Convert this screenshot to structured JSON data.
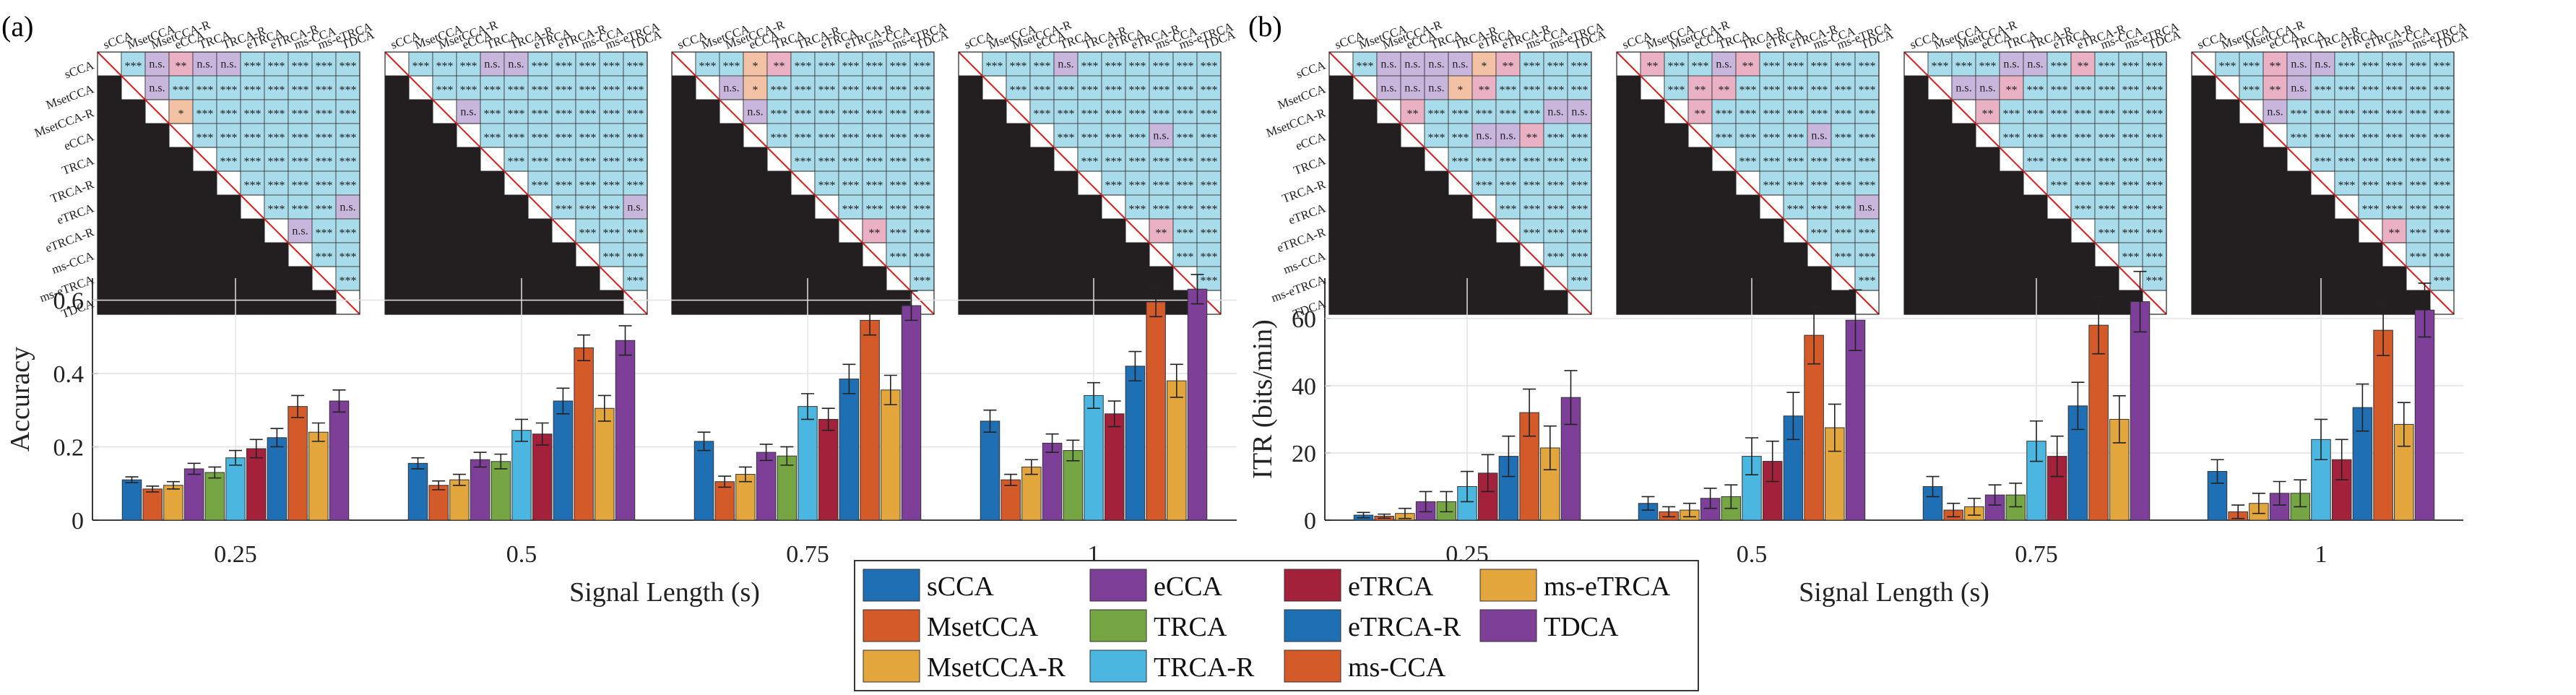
{
  "panels": [
    {
      "label": "(a)"
    },
    {
      "label": "(b)"
    }
  ],
  "methods": [
    "sCCA",
    "MsetCCA",
    "MsetCCA-R",
    "eCCA",
    "TRCA",
    "TRCA-R",
    "eTRCA",
    "eTRCA-R",
    "ms-CCA",
    "ms-eTRCA",
    "TDCA"
  ],
  "colors": [
    "#1f6fb4",
    "#d45a2a",
    "#e3a63c",
    "#7d3f98",
    "#76a543",
    "#4bb6e0",
    "#a3213a",
    "#1f6fb4",
    "#d45a2a",
    "#e3a63c",
    "#7d3f98"
  ],
  "legend": {
    "columns": [
      [
        "sCCA",
        "MsetCCA",
        "MsetCCA-R"
      ],
      [
        "eCCA",
        "TRCA",
        "TRCA-R"
      ],
      [
        "eTRCA",
        "eTRCA-R",
        "ms-CCA"
      ],
      [
        "ms-eTRCA",
        "TDCA"
      ]
    ],
    "column_color_index": [
      [
        0,
        1,
        2
      ],
      [
        3,
        4,
        5
      ],
      [
        6,
        7,
        8
      ],
      [
        9,
        10
      ]
    ]
  },
  "significance_colors": {
    "***": "#a8dcea",
    "**": "#e9b1c3",
    "*": "#f3c2a4",
    "n.s.": "#c9b6dc"
  },
  "significance": {
    "a": [
      [
        [
          "***",
          1
        ],
        [
          "n.s.",
          2
        ],
        [
          "**",
          3
        ],
        [
          "n.s.",
          4
        ],
        [
          "n.s.",
          5
        ],
        [
          "***",
          6
        ],
        [
          "***",
          7
        ],
        [
          "***",
          8
        ],
        [
          "***",
          9
        ],
        [
          "***",
          10
        ],
        [
          "n.s.",
          13
        ],
        [
          "n.s.",
          24
        ],
        [
          "*",
          25
        ],
        [
          "n.s.",
          69
        ],
        [
          "n.s.",
          76
        ],
        [
          "n.s.",
          84
        ],
        [
          "n.s.",
          85
        ]
      ],
      [
        [
          "n.s.",
          4
        ],
        [
          "n.s.",
          5
        ],
        [
          "n.s.",
          12
        ],
        [
          "n.s.",
          25
        ],
        [
          "n.s.",
          33
        ],
        [
          "n.s.",
          76
        ],
        [
          "n.s.",
          77
        ],
        [
          "n.s.",
          84
        ]
      ],
      [
        [
          "*",
          3
        ],
        [
          "**",
          4
        ],
        [
          "*",
          14
        ],
        [
          "n.s.",
          13
        ],
        [
          "n.s.",
          25
        ],
        [
          "n.s.",
          33
        ],
        [
          "**",
          85
        ]
      ],
      [
        [
          "n.s.",
          4
        ],
        [
          "n.s.",
          12
        ],
        [
          "n.s.",
          33
        ],
        [
          "n.s.",
          41
        ],
        [
          "**",
          85
        ]
      ]
    ],
    "b": [
      [
        [
          "n.s.",
          2
        ],
        [
          "n.s.",
          3
        ],
        [
          "n.s.",
          4
        ],
        [
          "n.s.",
          5
        ],
        [
          "*",
          6
        ],
        [
          "**",
          7
        ],
        [
          "n.s.",
          12
        ],
        [
          "n.s.",
          13
        ],
        [
          "n.s.",
          14
        ],
        [
          "n.s.",
          15
        ],
        [
          "*",
          16
        ],
        [
          "**",
          17
        ],
        [
          "*",
          22
        ],
        [
          "n.s.",
          23
        ],
        [
          "n.s.",
          24
        ],
        [
          "**",
          25
        ],
        [
          "n.s.",
          31
        ],
        [
          "n.s.",
          32
        ],
        [
          "**",
          33
        ],
        [
          "n.s.",
          39
        ],
        [
          "n.s.",
          40
        ],
        [
          "**",
          41
        ]
      ],
      [
        [
          "**",
          1
        ],
        [
          "n.s.",
          4
        ],
        [
          "**",
          5
        ],
        [
          "**",
          14
        ],
        [
          "**",
          15
        ],
        [
          "*",
          24
        ],
        [
          "**",
          25
        ],
        [
          "*",
          33
        ],
        [
          "n.s.",
          41
        ],
        [
          "n.s.",
          76
        ],
        [
          "n.s.",
          77
        ],
        [
          "n.s.",
          84
        ]
      ],
      [
        [
          "n.s.",
          4
        ],
        [
          "n.s.",
          5
        ],
        [
          "**",
          7
        ],
        [
          "n.s.",
          13
        ],
        [
          "n.s.",
          14
        ],
        [
          "**",
          15
        ],
        [
          "n.s.",
          23
        ],
        [
          "n.s.",
          24
        ],
        [
          "**",
          25
        ],
        [
          "n.s.",
          33
        ],
        [
          "**",
          84
        ]
      ],
      [
        [
          "**",
          3
        ],
        [
          "n.s.",
          4
        ],
        [
          "n.s.",
          5
        ],
        [
          "**",
          14
        ],
        [
          "n.s.",
          15
        ],
        [
          "n.s.",
          25
        ],
        [
          "n.s.",
          33
        ],
        [
          "**",
          77
        ],
        [
          "**",
          85
        ]
      ]
    ]
  },
  "chart_data": [
    {
      "type": "bar",
      "panel": "(a)",
      "categories": [
        "0.25",
        "0.5",
        "0.75",
        "1"
      ],
      "xlabel": "Signal Length (s)",
      "ylabel": "Accuracy",
      "ylim": [
        0,
        0.66
      ],
      "yticks": [
        0,
        0.2,
        0.4,
        0.6
      ],
      "ytick_labels": [
        "0",
        "0.2",
        "0.4",
        "0.6"
      ],
      "grid": true,
      "series": [
        {
          "name": "sCCA",
          "values": [
            0.11,
            0.155,
            0.215,
            0.27
          ],
          "errors": [
            0.008,
            0.015,
            0.025,
            0.03
          ]
        },
        {
          "name": "MsetCCA",
          "values": [
            0.085,
            0.095,
            0.105,
            0.11
          ],
          "errors": [
            0.008,
            0.012,
            0.015,
            0.015
          ]
        },
        {
          "name": "MsetCCA-R",
          "values": [
            0.095,
            0.11,
            0.125,
            0.145
          ],
          "errors": [
            0.01,
            0.015,
            0.02,
            0.02
          ]
        },
        {
          "name": "eCCA",
          "values": [
            0.14,
            0.165,
            0.185,
            0.21
          ],
          "errors": [
            0.015,
            0.02,
            0.022,
            0.025
          ]
        },
        {
          "name": "TRCA",
          "values": [
            0.13,
            0.16,
            0.175,
            0.19
          ],
          "errors": [
            0.015,
            0.02,
            0.025,
            0.028
          ]
        },
        {
          "name": "TRCA-R",
          "values": [
            0.17,
            0.245,
            0.31,
            0.34
          ],
          "errors": [
            0.02,
            0.03,
            0.035,
            0.035
          ]
        },
        {
          "name": "eTRCA",
          "values": [
            0.195,
            0.235,
            0.275,
            0.29
          ],
          "errors": [
            0.025,
            0.03,
            0.03,
            0.035
          ]
        },
        {
          "name": "eTRCA-R",
          "values": [
            0.225,
            0.325,
            0.385,
            0.42
          ],
          "errors": [
            0.025,
            0.035,
            0.04,
            0.04
          ]
        },
        {
          "name": "ms-CCA",
          "values": [
            0.31,
            0.47,
            0.545,
            0.595
          ],
          "errors": [
            0.03,
            0.035,
            0.04,
            0.04
          ]
        },
        {
          "name": "ms-eTRCA",
          "values": [
            0.24,
            0.305,
            0.355,
            0.38
          ],
          "errors": [
            0.025,
            0.035,
            0.04,
            0.045
          ]
        },
        {
          "name": "TDCA",
          "values": [
            0.325,
            0.49,
            0.585,
            0.63
          ],
          "errors": [
            0.03,
            0.04,
            0.04,
            0.04
          ]
        }
      ]
    },
    {
      "type": "bar",
      "panel": "(b)",
      "categories": [
        "0.25",
        "0.5",
        "0.75",
        "1"
      ],
      "xlabel": "Signal Length (s)",
      "ylabel": "ITR (bits/min)",
      "ylim": [
        0,
        72
      ],
      "yticks": [
        0,
        20,
        40,
        60
      ],
      "ytick_labels": [
        "0",
        "20",
        "40",
        "60"
      ],
      "grid": true,
      "series": [
        {
          "name": "sCCA",
          "values": [
            1.5,
            5,
            10,
            14.5
          ],
          "errors": [
            0.8,
            2,
            3,
            3.5
          ]
        },
        {
          "name": "MsetCCA",
          "values": [
            1.2,
            2.5,
            3,
            2.5
          ],
          "errors": [
            0.6,
            1.5,
            2,
            2
          ]
        },
        {
          "name": "MsetCCA-R",
          "values": [
            2,
            3,
            4,
            5
          ],
          "errors": [
            1.5,
            2,
            2.5,
            3
          ]
        },
        {
          "name": "eCCA",
          "values": [
            5.5,
            6.5,
            7.5,
            8
          ],
          "errors": [
            3,
            3,
            3,
            3.5
          ]
        },
        {
          "name": "TRCA",
          "values": [
            5.5,
            7,
            7.5,
            8
          ],
          "errors": [
            3,
            3.5,
            3.5,
            4
          ]
        },
        {
          "name": "TRCA-R",
          "values": [
            10,
            19,
            23.5,
            24
          ],
          "errors": [
            4.5,
            5.5,
            6,
            6
          ]
        },
        {
          "name": "eTRCA",
          "values": [
            14,
            17.5,
            19,
            18
          ],
          "errors": [
            5.5,
            6,
            6,
            6
          ]
        },
        {
          "name": "eTRCA-R",
          "values": [
            19,
            31,
            34,
            33.5
          ],
          "errors": [
            6,
            7,
            7,
            7
          ]
        },
        {
          "name": "ms-CCA",
          "values": [
            32,
            55,
            58,
            56.5
          ],
          "errors": [
            7,
            8.5,
            8.5,
            7.5
          ]
        },
        {
          "name": "ms-eTRCA",
          "values": [
            21.5,
            27.5,
            30,
            28.5
          ],
          "errors": [
            6.5,
            7,
            7,
            6.5
          ]
        },
        {
          "name": "TDCA",
          "values": [
            36.5,
            59.5,
            65,
            62.5
          ],
          "errors": [
            8,
            9,
            9,
            8
          ]
        }
      ]
    }
  ]
}
